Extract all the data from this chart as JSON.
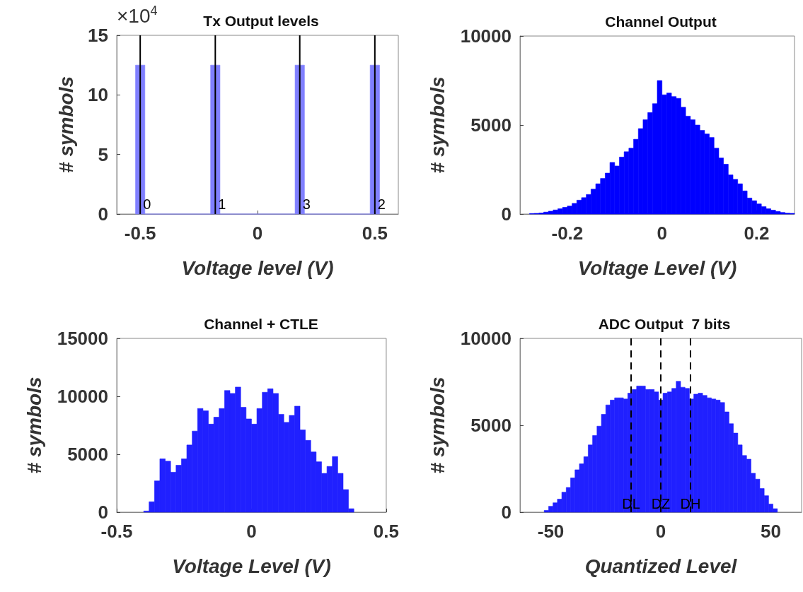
{
  "chart_data": [
    {
      "type": "histogram",
      "title": "Tx Output levels",
      "xlabel": "Voltage level (V)",
      "ylabel": "# symbols",
      "annotations": [
        "×10$^{4}$",
        {
          "text": "0",
          "x": -0.5,
          "y": 0
        },
        {
          "text": "1",
          "x": -0.18,
          "y": 0
        },
        {
          "text": "3",
          "x": 0.18,
          "y": 0
        },
        {
          "text": "2",
          "x": 0.5,
          "y": 0
        }
      ],
      "color": "#8080ff",
      "bins": [
        -0.52,
        -0.48,
        -0.2,
        -0.16,
        0.16,
        0.2,
        0.48,
        0.52
      ],
      "values": [
        12.5,
        0,
        12.5,
        0,
        12.5,
        0,
        12.5
      ],
      "xlim": [
        -0.6,
        0.6
      ],
      "xticks": [
        -0.5,
        0,
        0.5
      ],
      "ylim": [
        0,
        15
      ],
      "yticks": [
        0,
        5,
        10,
        15
      ],
      "ref_lines": [
        {
          "axis": "x",
          "value": -0.5,
          "color": "#000000",
          "line_style": "solid"
        },
        {
          "axis": "x",
          "value": -0.18,
          "color": "#000000",
          "line_style": "solid"
        },
        {
          "axis": "x",
          "value": 0.18,
          "color": "#000000",
          "line_style": "solid"
        },
        {
          "axis": "x",
          "value": 0.5,
          "color": "#000000",
          "line_style": "solid"
        }
      ]
    },
    {
      "type": "histogram",
      "title": "Channel Output",
      "xlabel": "Voltage Level (V)",
      "ylabel": "# symbols",
      "color": "#0000ff",
      "bins": [
        -0.28,
        -0.27,
        -0.26,
        -0.25,
        -0.24,
        -0.23,
        -0.22,
        -0.21,
        -0.2,
        -0.19,
        -0.18,
        -0.17,
        -0.16,
        -0.15,
        -0.14,
        -0.13,
        -0.12,
        -0.11,
        -0.1,
        -0.09,
        -0.08,
        -0.07,
        -0.06,
        -0.05,
        -0.04,
        -0.03,
        -0.02,
        -0.01,
        0,
        0.01,
        0.02,
        0.03,
        0.04,
        0.05,
        0.06,
        0.07,
        0.08,
        0.09,
        0.1,
        0.11,
        0.12,
        0.13,
        0.14,
        0.15,
        0.16,
        0.17,
        0.18,
        0.19,
        0.2,
        0.21,
        0.22,
        0.23,
        0.24,
        0.25,
        0.26,
        0.27,
        0.28
      ],
      "values": [
        30,
        40,
        60,
        110,
        160,
        230,
        300,
        380,
        450,
        600,
        780,
        920,
        1100,
        1400,
        1700,
        2000,
        2300,
        2900,
        2700,
        3200,
        3500,
        3700,
        4200,
        4800,
        5300,
        5700,
        6200,
        7500,
        6700,
        6800,
        6600,
        6500,
        6000,
        5500,
        5300,
        5000,
        4700,
        4500,
        4300,
        3700,
        3150,
        2800,
        2200,
        1950,
        1700,
        1300,
        900,
        750,
        570,
        420,
        300,
        220,
        150,
        90,
        50,
        40
      ],
      "xlim": [
        -0.3,
        0.28
      ],
      "xticks": [
        -0.2,
        0,
        0.2
      ],
      "ylim": [
        0,
        10000
      ],
      "yticks": [
        0,
        5000,
        10000
      ]
    },
    {
      "type": "histogram",
      "title": "Channel + CTLE",
      "xlabel": "Voltage Level (V)",
      "ylabel": "# symbols",
      "color": "#2020ff",
      "bins": [
        -0.4,
        -0.38,
        -0.36,
        -0.34,
        -0.32,
        -0.3,
        -0.28,
        -0.26,
        -0.24,
        -0.22,
        -0.2,
        -0.18,
        -0.16,
        -0.14,
        -0.12,
        -0.1,
        -0.08,
        -0.06,
        -0.04,
        -0.02,
        0,
        0.02,
        0.04,
        0.06,
        0.08,
        0.1,
        0.12,
        0.14,
        0.16,
        0.18,
        0.2,
        0.22,
        0.24,
        0.26,
        0.28,
        0.3,
        0.32,
        0.34,
        0.36,
        0.38
      ],
      "values": [
        100,
        900,
        2700,
        4600,
        4400,
        3450,
        4050,
        4600,
        5800,
        7000,
        8950,
        8750,
        7600,
        8200,
        8950,
        10500,
        10250,
        10800,
        9050,
        8050,
        7600,
        8950,
        10350,
        10650,
        10250,
        8450,
        7750,
        8350,
        9150,
        7100,
        6200,
        5200,
        4350,
        3350,
        3950,
        4800,
        3350,
        1950,
        300
      ],
      "xlim": [
        -0.5,
        0.5
      ],
      "xticks": [
        -0.5,
        0,
        0.5
      ],
      "ylim": [
        0,
        15000
      ],
      "yticks": [
        0,
        5000,
        10000,
        15000
      ]
    },
    {
      "type": "histogram",
      "title": "ADC Output  7 bits",
      "xlabel": "Quantized Level",
      "ylabel": "# symbols",
      "color": "#2020ff",
      "bins": [
        -53,
        -51,
        -49,
        -47,
        -45,
        -43,
        -41,
        -39,
        -37,
        -35,
        -33,
        -31,
        -29,
        -27,
        -25,
        -23,
        -21,
        -19,
        -17,
        -15,
        -13,
        -11,
        -9,
        -7,
        -5,
        -3,
        -1,
        1,
        3,
        5,
        7,
        9,
        11,
        13,
        15,
        17,
        19,
        21,
        23,
        25,
        27,
        29,
        31,
        33,
        35,
        37,
        39,
        41,
        43,
        45,
        47,
        49,
        51,
        53
      ],
      "values": [
        100,
        340,
        540,
        750,
        1150,
        1420,
        1970,
        2440,
        2780,
        3190,
        3870,
        4410,
        4950,
        5630,
        6170,
        6450,
        6580,
        6580,
        6510,
        6850,
        7060,
        7260,
        7260,
        7060,
        7060,
        6920,
        6450,
        6850,
        6920,
        7120,
        7530,
        7190,
        7120,
        6510,
        6790,
        6850,
        6720,
        6580,
        6510,
        6450,
        6310,
        5770,
        5090,
        4550,
        3870,
        3260,
        3050,
        2240,
        1900,
        1360,
        950,
        470,
        200
      ],
      "xlim": [
        -64,
        64
      ],
      "xticks": [
        -50,
        0,
        50
      ],
      "ylim": [
        0,
        10000
      ],
      "yticks": [
        0,
        5000,
        10000
      ],
      "ref_lines": [
        {
          "axis": "x",
          "value": -13.5,
          "label": "DL",
          "color": "#000000",
          "line_style": "dashed"
        },
        {
          "axis": "x",
          "value": 0,
          "label": "DZ",
          "color": "#000000",
          "line_style": "dashed"
        },
        {
          "axis": "x",
          "value": 13.5,
          "label": "DH",
          "color": "#000000",
          "line_style": "dashed"
        }
      ]
    }
  ]
}
